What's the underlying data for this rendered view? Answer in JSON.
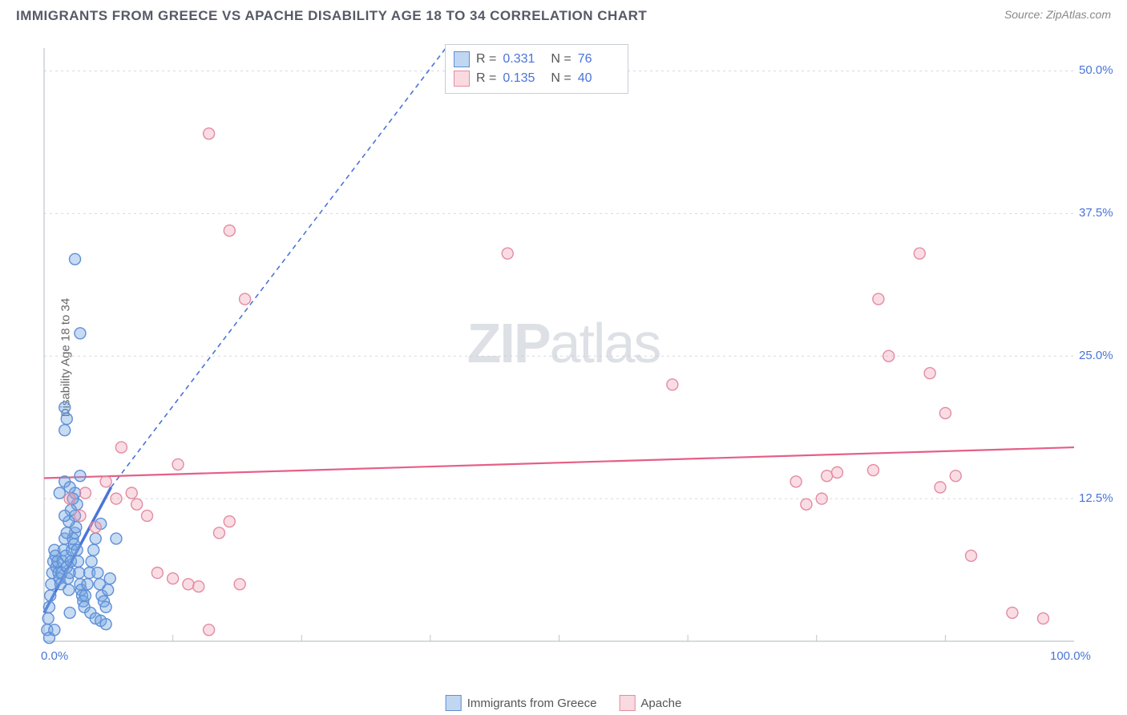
{
  "title": "IMMIGRANTS FROM GREECE VS APACHE DISABILITY AGE 18 TO 34 CORRELATION CHART",
  "source": "Source: ZipAtlas.com",
  "y_axis_label": "Disability Age 18 to 34",
  "watermark_bold": "ZIP",
  "watermark_light": "atlas",
  "chart": {
    "type": "scatter",
    "xlim": [
      0,
      100
    ],
    "ylim": [
      0,
      52
    ],
    "x_ticks": [
      0,
      100
    ],
    "x_tick_labels": [
      "0.0%",
      "100.0%"
    ],
    "x_minor_ticks": [
      12.5,
      25,
      37.5,
      50,
      62.5,
      75,
      87.5
    ],
    "y_ticks": [
      12.5,
      25.0,
      37.5,
      50.0
    ],
    "y_tick_labels": [
      "12.5%",
      "25.0%",
      "37.5%",
      "50.0%"
    ],
    "grid_color": "#d6d9df",
    "axis_color": "#bfc4cc",
    "background": "#ffffff",
    "marker_radius": 7,
    "marker_stroke_width": 1.4,
    "series": [
      {
        "name": "Immigrants from Greece",
        "color_fill": "rgba(115,165,225,0.40)",
        "color_stroke": "#5f8fd6",
        "R": "0.331",
        "N": "76",
        "trend": {
          "x1": 0,
          "y1": 2.5,
          "x2": 39,
          "y2": 52,
          "stroke": "#4a74d8",
          "dash": "6,5",
          "width": 1.6,
          "solid_until_x": 6.5,
          "solid_until_y": 13.5
        },
        "points": [
          [
            0.3,
            1.0
          ],
          [
            0.4,
            2.0
          ],
          [
            0.5,
            3.0
          ],
          [
            0.6,
            4.0
          ],
          [
            0.7,
            5.0
          ],
          [
            0.8,
            6.0
          ],
          [
            0.9,
            7.0
          ],
          [
            1.0,
            8.0
          ],
          [
            1.1,
            7.5
          ],
          [
            1.2,
            6.5
          ],
          [
            1.3,
            7.0
          ],
          [
            1.4,
            6.0
          ],
          [
            1.5,
            5.5
          ],
          [
            1.6,
            5.0
          ],
          [
            1.7,
            6.0
          ],
          [
            1.8,
            7.0
          ],
          [
            1.9,
            8.0
          ],
          [
            2.0,
            9.0
          ],
          [
            2.1,
            7.5
          ],
          [
            2.2,
            6.5
          ],
          [
            2.3,
            5.5
          ],
          [
            2.4,
            4.5
          ],
          [
            2.5,
            6.0
          ],
          [
            2.6,
            7.0
          ],
          [
            2.7,
            8.0
          ],
          [
            2.8,
            9.0
          ],
          [
            2.9,
            8.5
          ],
          [
            3.0,
            9.5
          ],
          [
            3.1,
            10.0
          ],
          [
            3.2,
            8.0
          ],
          [
            3.3,
            7.0
          ],
          [
            3.4,
            6.0
          ],
          [
            3.5,
            5.0
          ],
          [
            3.6,
            4.5
          ],
          [
            3.7,
            4.0
          ],
          [
            3.8,
            3.5
          ],
          [
            3.9,
            3.0
          ],
          [
            4.0,
            4.0
          ],
          [
            4.2,
            5.0
          ],
          [
            4.4,
            6.0
          ],
          [
            4.6,
            7.0
          ],
          [
            4.8,
            8.0
          ],
          [
            5.0,
            9.0
          ],
          [
            5.2,
            6.0
          ],
          [
            5.4,
            5.0
          ],
          [
            5.6,
            4.0
          ],
          [
            5.8,
            3.5
          ],
          [
            6.0,
            3.0
          ],
          [
            6.2,
            4.5
          ],
          [
            6.4,
            5.5
          ],
          [
            3.0,
            11.0
          ],
          [
            3.2,
            12.0
          ],
          [
            3.0,
            13.0
          ],
          [
            2.8,
            12.5
          ],
          [
            2.6,
            11.5
          ],
          [
            2.4,
            10.5
          ],
          [
            2.2,
            9.5
          ],
          [
            2.0,
            11.0
          ],
          [
            1.5,
            13.0
          ],
          [
            2.0,
            14.0
          ],
          [
            2.5,
            13.5
          ],
          [
            3.5,
            14.5
          ],
          [
            5.5,
            10.3
          ],
          [
            2.0,
            18.5
          ],
          [
            2.2,
            19.5
          ],
          [
            2.0,
            20.5
          ],
          [
            3.5,
            27.0
          ],
          [
            3.0,
            33.5
          ],
          [
            0.5,
            0.3
          ],
          [
            4.5,
            2.5
          ],
          [
            5.0,
            2.0
          ],
          [
            5.5,
            1.8
          ],
          [
            6.0,
            1.5
          ],
          [
            7.0,
            9.0
          ],
          [
            2.5,
            2.5
          ],
          [
            1.0,
            1.0
          ]
        ]
      },
      {
        "name": "Apache",
        "color_fill": "rgba(240,150,170,0.32)",
        "color_stroke": "#e38ba1",
        "R": "0.135",
        "N": "40",
        "trend": {
          "x1": 0,
          "y1": 14.3,
          "x2": 100,
          "y2": 17.0,
          "stroke": "#e55f87",
          "dash": null,
          "width": 2.2
        },
        "points": [
          [
            2.5,
            12.5
          ],
          [
            3.5,
            11.0
          ],
          [
            4.0,
            13.0
          ],
          [
            5.0,
            10.0
          ],
          [
            6.0,
            14.0
          ],
          [
            7.0,
            12.5
          ],
          [
            7.5,
            17.0
          ],
          [
            8.5,
            13.0
          ],
          [
            9.0,
            12.0
          ],
          [
            10.0,
            11.0
          ],
          [
            11.0,
            6.0
          ],
          [
            12.5,
            5.5
          ],
          [
            13.0,
            15.5
          ],
          [
            14.0,
            5.0
          ],
          [
            15.0,
            4.8
          ],
          [
            16.0,
            1.0
          ],
          [
            17.0,
            9.5
          ],
          [
            18.0,
            10.5
          ],
          [
            19.0,
            5.0
          ],
          [
            16.0,
            44.5
          ],
          [
            18.0,
            36.0
          ],
          [
            19.5,
            30.0
          ],
          [
            45.0,
            34.0
          ],
          [
            61.0,
            22.5
          ],
          [
            73.0,
            14.0
          ],
          [
            74.0,
            12.0
          ],
          [
            75.5,
            12.5
          ],
          [
            76.0,
            14.5
          ],
          [
            77.0,
            14.8
          ],
          [
            80.5,
            15.0
          ],
          [
            81.0,
            30.0
          ],
          [
            82.0,
            25.0
          ],
          [
            85.0,
            34.0
          ],
          [
            86.0,
            23.5
          ],
          [
            87.0,
            13.5
          ],
          [
            87.5,
            20.0
          ],
          [
            88.5,
            14.5
          ],
          [
            90.0,
            7.5
          ],
          [
            94.0,
            2.5
          ],
          [
            97.0,
            2.0
          ]
        ]
      }
    ]
  },
  "bottom_legend": [
    {
      "swatch": "blue",
      "label": "Immigrants from Greece"
    },
    {
      "swatch": "pink",
      "label": "Apache"
    }
  ]
}
